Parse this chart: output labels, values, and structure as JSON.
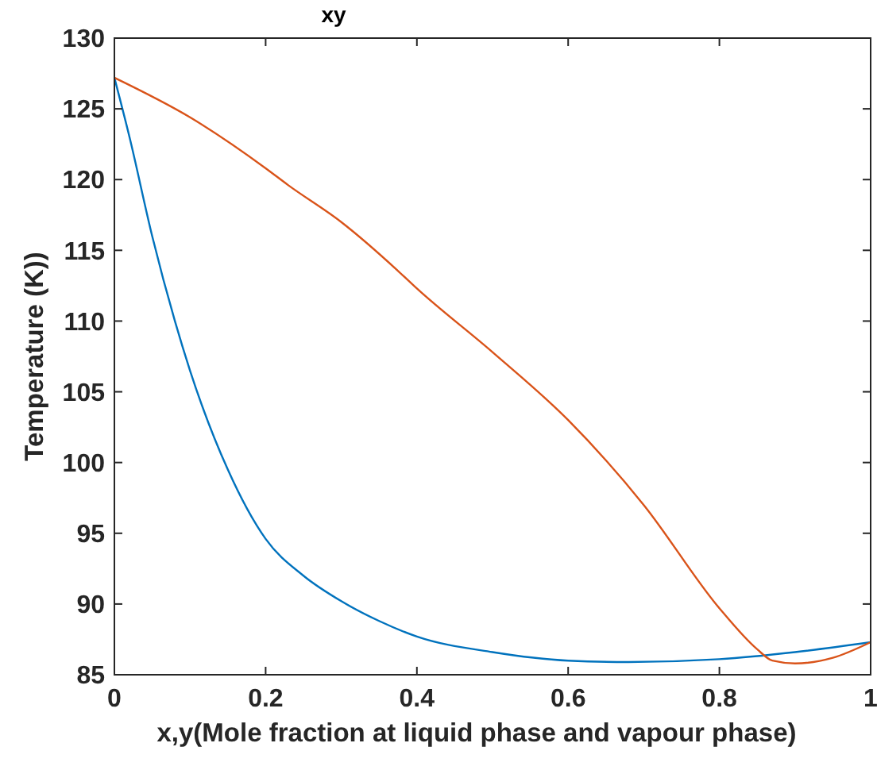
{
  "chart_data": {
    "type": "line",
    "title": "xy",
    "xlabel": "x,y(Mole fraction at liquid phase and vapour phase)",
    "ylabel": "Temperature (K))",
    "xlim": [
      0,
      1
    ],
    "xticks": [
      0,
      0.2,
      0.4,
      0.6,
      0.8,
      1
    ],
    "ylim": [
      85,
      130
    ],
    "yticks": [
      85,
      90,
      95,
      100,
      105,
      110,
      115,
      120,
      125,
      130
    ],
    "grid": false,
    "series": [
      {
        "color": "#0072bd",
        "x": [
          0,
          0.02,
          0.05,
          0.08,
          0.1,
          0.15,
          0.2,
          0.25,
          0.3,
          0.35,
          0.4,
          0.5,
          0.6,
          0.68,
          0.8,
          0.9,
          1
        ],
        "values": [
          127.2,
          123,
          116,
          110,
          106.5,
          99.5,
          94.6,
          92,
          90.2,
          88.8,
          87.7,
          86.6,
          86,
          85.9,
          86.1,
          86.6,
          87.3
        ]
      },
      {
        "color": "#d95319",
        "x": [
          0,
          0.1,
          0.2,
          0.23,
          0.3,
          0.374,
          0.4,
          0.5,
          0.6,
          0.7,
          0.8,
          0.85,
          0.87,
          0.9,
          0.95,
          1
        ],
        "values": [
          127.2,
          124.4,
          120.8,
          119.6,
          117,
          113.6,
          112.3,
          107.8,
          103,
          97,
          89.7,
          86.8,
          86,
          85.8,
          86.2,
          87.3
        ]
      }
    ]
  }
}
